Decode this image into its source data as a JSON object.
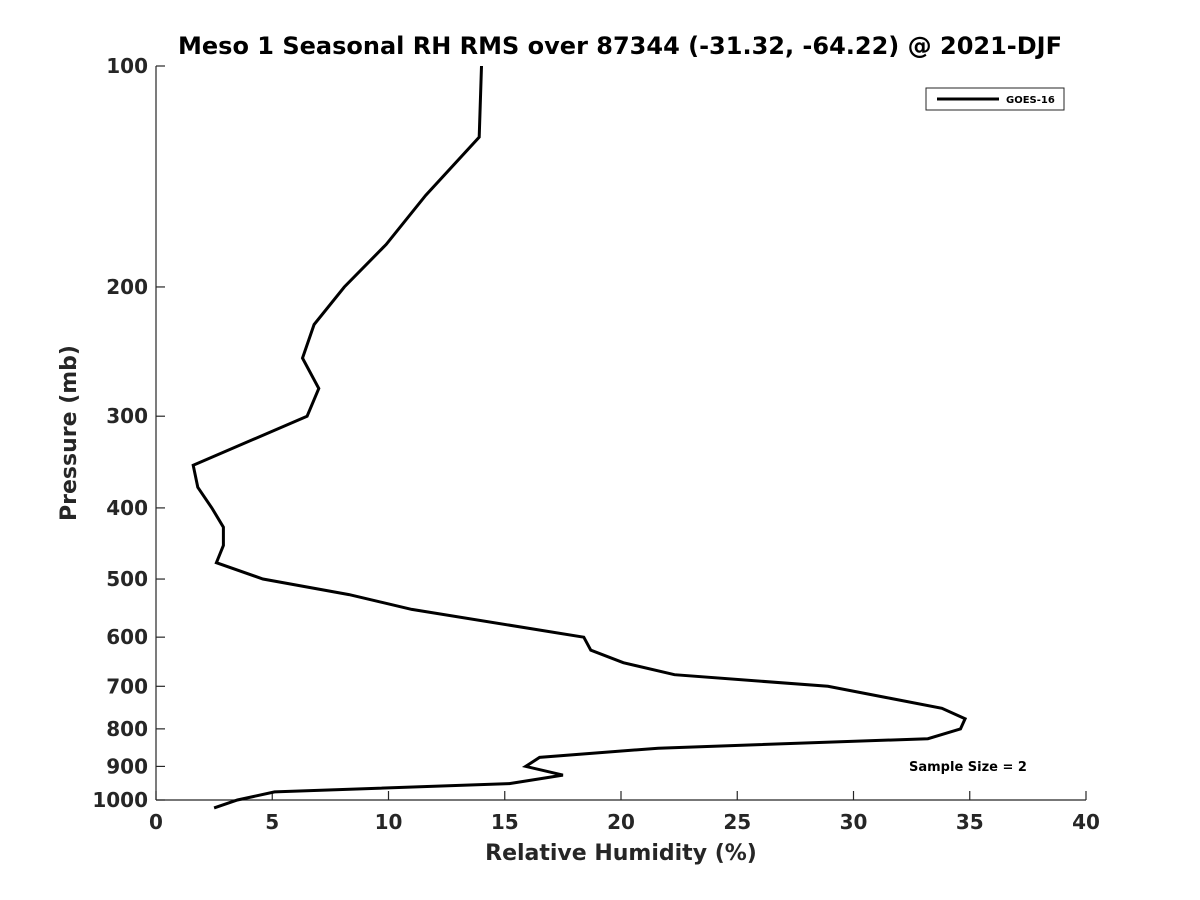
{
  "chart_data": {
    "type": "line",
    "title": "Meso 1 Seasonal RH RMS over 87344 (-31.32, -64.22) @ 2021-DJF",
    "xlabel": "Relative Humidity (%)",
    "ylabel": "Pressure (mb)",
    "xlim": [
      0,
      40
    ],
    "ylim": [
      100,
      1000
    ],
    "y_scale": "log",
    "y_reversed": true,
    "x_ticks": [
      0,
      5,
      10,
      15,
      20,
      25,
      30,
      35,
      40
    ],
    "x_tick_labels": [
      "0",
      "5",
      "10",
      "15",
      "20",
      "25",
      "30",
      "35",
      "40"
    ],
    "y_ticks": [
      100,
      200,
      300,
      400,
      500,
      600,
      700,
      800,
      900,
      1000
    ],
    "y_tick_labels": [
      "100",
      "200",
      "300",
      "400",
      "500",
      "600",
      "700",
      "800",
      "900",
      "1000"
    ],
    "grid": false,
    "legend_position": "top-right",
    "series": [
      {
        "name": "GOES-16",
        "color": "#000000",
        "points": [
          {
            "x": 14.0,
            "y": 100
          },
          {
            "x": 13.9,
            "y": 125
          },
          {
            "x": 11.6,
            "y": 150
          },
          {
            "x": 9.9,
            "y": 175
          },
          {
            "x": 8.1,
            "y": 200
          },
          {
            "x": 6.8,
            "y": 225
          },
          {
            "x": 6.3,
            "y": 250
          },
          {
            "x": 7.0,
            "y": 275
          },
          {
            "x": 6.5,
            "y": 300
          },
          {
            "x": 1.6,
            "y": 350
          },
          {
            "x": 1.8,
            "y": 375
          },
          {
            "x": 2.4,
            "y": 400
          },
          {
            "x": 2.9,
            "y": 425
          },
          {
            "x": 2.9,
            "y": 450
          },
          {
            "x": 2.6,
            "y": 475
          },
          {
            "x": 4.6,
            "y": 500
          },
          {
            "x": 8.3,
            "y": 525
          },
          {
            "x": 11.0,
            "y": 550
          },
          {
            "x": 18.4,
            "y": 600
          },
          {
            "x": 18.7,
            "y": 625
          },
          {
            "x": 20.1,
            "y": 650
          },
          {
            "x": 22.3,
            "y": 675
          },
          {
            "x": 28.9,
            "y": 700
          },
          {
            "x": 31.4,
            "y": 725
          },
          {
            "x": 33.8,
            "y": 750
          },
          {
            "x": 34.8,
            "y": 775
          },
          {
            "x": 34.6,
            "y": 800
          },
          {
            "x": 33.2,
            "y": 825
          },
          {
            "x": 21.6,
            "y": 850
          },
          {
            "x": 16.5,
            "y": 875
          },
          {
            "x": 15.9,
            "y": 900
          },
          {
            "x": 17.5,
            "y": 925
          },
          {
            "x": 15.2,
            "y": 950
          },
          {
            "x": 5.1,
            "y": 975
          },
          {
            "x": 3.5,
            "y": 1000
          },
          {
            "x": 2.5,
            "y": 1025
          }
        ]
      }
    ],
    "annotations": [
      "Sample Size = 2"
    ]
  }
}
